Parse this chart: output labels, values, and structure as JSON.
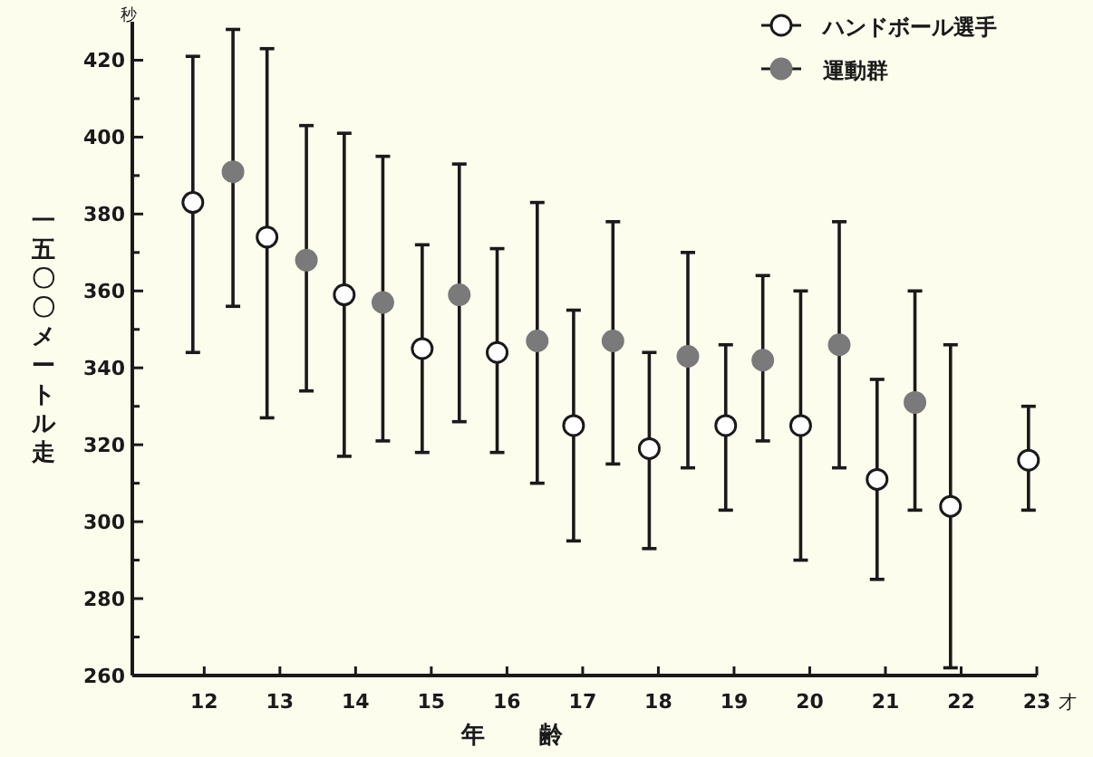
{
  "chart_data": {
    "type": "scatter",
    "xlabel": "年齢",
    "ylabel": "一五〇〇メートル走",
    "annotations": [
      "秒",
      "才"
    ],
    "xlim": [
      11.05,
      23
    ],
    "xticks": [
      12,
      13,
      14,
      15,
      16,
      17,
      18,
      19,
      20,
      21,
      22,
      23
    ],
    "ylim": [
      260,
      430
    ],
    "yticks": [
      260,
      {
        "value": 270,
        "label": null
      },
      280,
      {
        "value": 290,
        "label": null
      },
      300,
      {
        "value": 310,
        "label": null
      },
      320,
      {
        "value": 330,
        "label": null
      },
      340,
      {
        "value": 350,
        "label": null
      },
      360,
      {
        "value": 370,
        "label": null
      },
      380,
      {
        "value": 390,
        "label": null
      },
      400,
      {
        "value": 410,
        "label": null
      },
      420
    ],
    "marker": "circle",
    "legend": "top right",
    "grid": false,
    "series": [
      {
        "name": "ハンドボール選手",
        "color": "#ffffff",
        "x": [
          11.85,
          12.83,
          13.85,
          14.88,
          15.87,
          16.88,
          17.88,
          18.89,
          19.88,
          20.89,
          21.86,
          22.89
        ],
        "values": [
          383,
          374,
          359,
          345,
          344,
          325,
          319,
          325,
          325,
          311,
          304,
          316
        ],
        "errors": [
          [
            344,
            421
          ],
          [
            327,
            423
          ],
          [
            317,
            401
          ],
          [
            318,
            372
          ],
          [
            318,
            371
          ],
          [
            295,
            355
          ],
          [
            293,
            344
          ],
          [
            303,
            346
          ],
          [
            290,
            360
          ],
          [
            285,
            337
          ],
          [
            262,
            346
          ],
          [
            303,
            330
          ]
        ]
      },
      {
        "name": "運動群",
        "color": "#7a7a7a",
        "x": [
          12.38,
          13.35,
          14.36,
          15.37,
          16.4,
          17.4,
          18.39,
          19.38,
          20.39,
          21.39
        ],
        "values": [
          391,
          368,
          357,
          359,
          347,
          347,
          343,
          342,
          346,
          331
        ],
        "errors": [
          [
            356,
            428
          ],
          [
            334,
            403
          ],
          [
            321,
            395
          ],
          [
            326,
            393
          ],
          [
            310,
            383
          ],
          [
            315,
            378
          ],
          [
            314,
            370
          ],
          [
            321,
            364
          ],
          [
            314,
            378
          ],
          [
            303,
            360
          ]
        ]
      }
    ]
  }
}
